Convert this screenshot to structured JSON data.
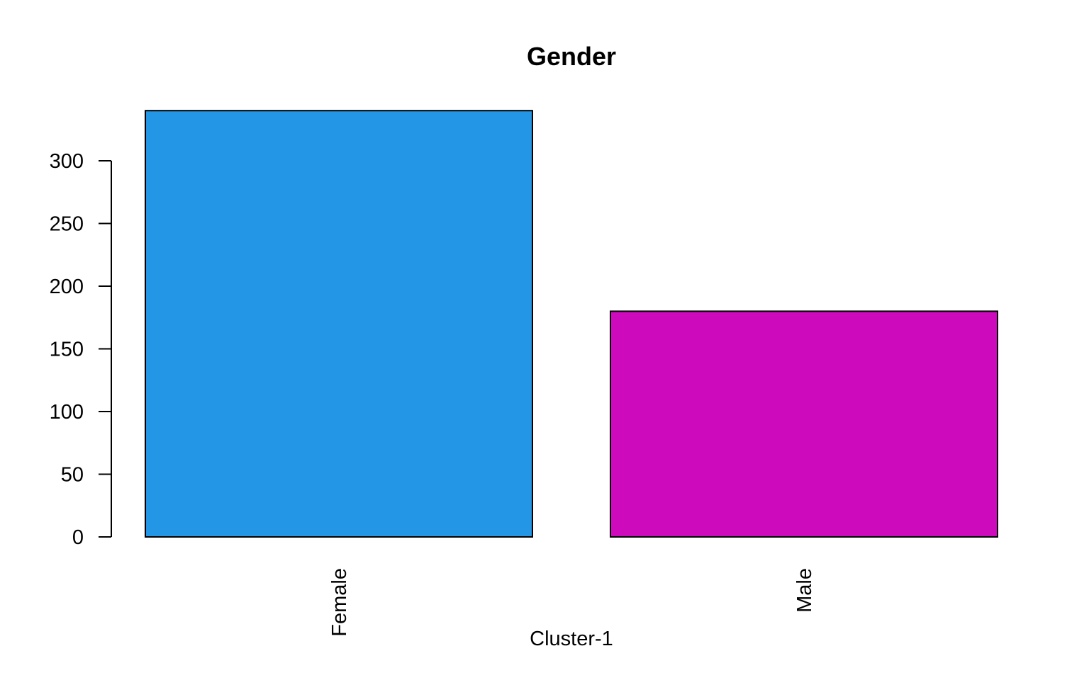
{
  "chart_data": {
    "type": "bar",
    "title": "Gender",
    "xlabel": "Cluster-1",
    "ylabel": "",
    "categories": [
      "Female",
      "Male"
    ],
    "values": [
      340,
      180
    ],
    "colors": [
      "#2396E5",
      "#CD0BBC"
    ],
    "yticks": [
      0,
      50,
      100,
      150,
      200,
      250,
      300
    ],
    "ylim": [
      0,
      340
    ],
    "grid": false,
    "legend": "none"
  }
}
